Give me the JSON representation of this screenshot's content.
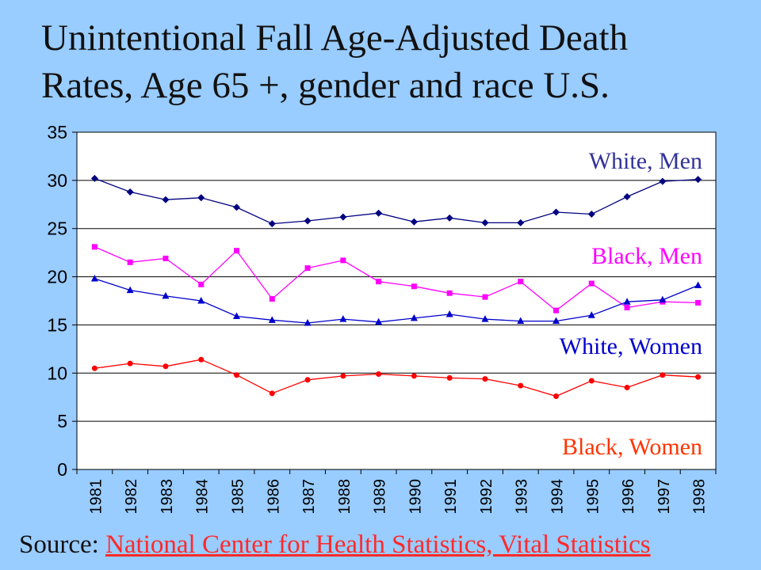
{
  "title_line1": "Unintentional Fall Age-Adjusted Death",
  "title_line2": "Rates, Age 65 +, gender and race U.S.",
  "source_label": "Source:",
  "source_link": "National Center for Health Statistics, Vital Statistics",
  "chart_data": {
    "type": "line",
    "x": [
      "1981",
      "1982",
      "1983",
      "1984",
      "1985",
      "1986",
      "1987",
      "1988",
      "1989",
      "1990",
      "1991",
      "1992",
      "1993",
      "1994",
      "1995",
      "1996",
      "1997",
      "1998"
    ],
    "ylim": [
      0,
      35
    ],
    "yticks": [
      "0",
      "5",
      "10",
      "15",
      "20",
      "25",
      "30",
      "35"
    ],
    "grid": true,
    "series": [
      {
        "name": "White, Men",
        "color": "#000080",
        "label_color": "#333399",
        "marker": "diamond",
        "values": [
          30.2,
          28.8,
          28.0,
          28.2,
          27.2,
          25.5,
          25.8,
          26.2,
          26.6,
          25.7,
          26.1,
          25.6,
          25.6,
          26.7,
          26.5,
          28.3,
          29.9,
          30.1
        ]
      },
      {
        "name": "Black, Men",
        "color": "#ff00ff",
        "label_color": "#ff00ff",
        "marker": "square",
        "values": [
          23.1,
          21.5,
          21.9,
          19.2,
          22.7,
          17.7,
          20.9,
          21.7,
          19.5,
          19.0,
          18.3,
          17.9,
          19.5,
          16.5,
          19.3,
          16.8,
          17.4,
          17.3
        ]
      },
      {
        "name": "White, Women",
        "color": "#0000cc",
        "label_color": "#0000cc",
        "marker": "triangle",
        "values": [
          19.8,
          18.6,
          18.0,
          17.5,
          15.9,
          15.5,
          15.2,
          15.6,
          15.3,
          15.7,
          16.1,
          15.6,
          15.4,
          15.4,
          16.0,
          17.4,
          17.6,
          19.1
        ]
      },
      {
        "name": "Black, Women",
        "color": "#ff0000",
        "label_color": "#ff3300",
        "marker": "circle",
        "values": [
          10.5,
          11.0,
          10.7,
          11.4,
          9.8,
          7.9,
          9.3,
          9.7,
          9.9,
          9.7,
          9.5,
          9.4,
          8.7,
          7.6,
          9.2,
          8.5,
          9.8,
          9.6
        ]
      }
    ]
  }
}
